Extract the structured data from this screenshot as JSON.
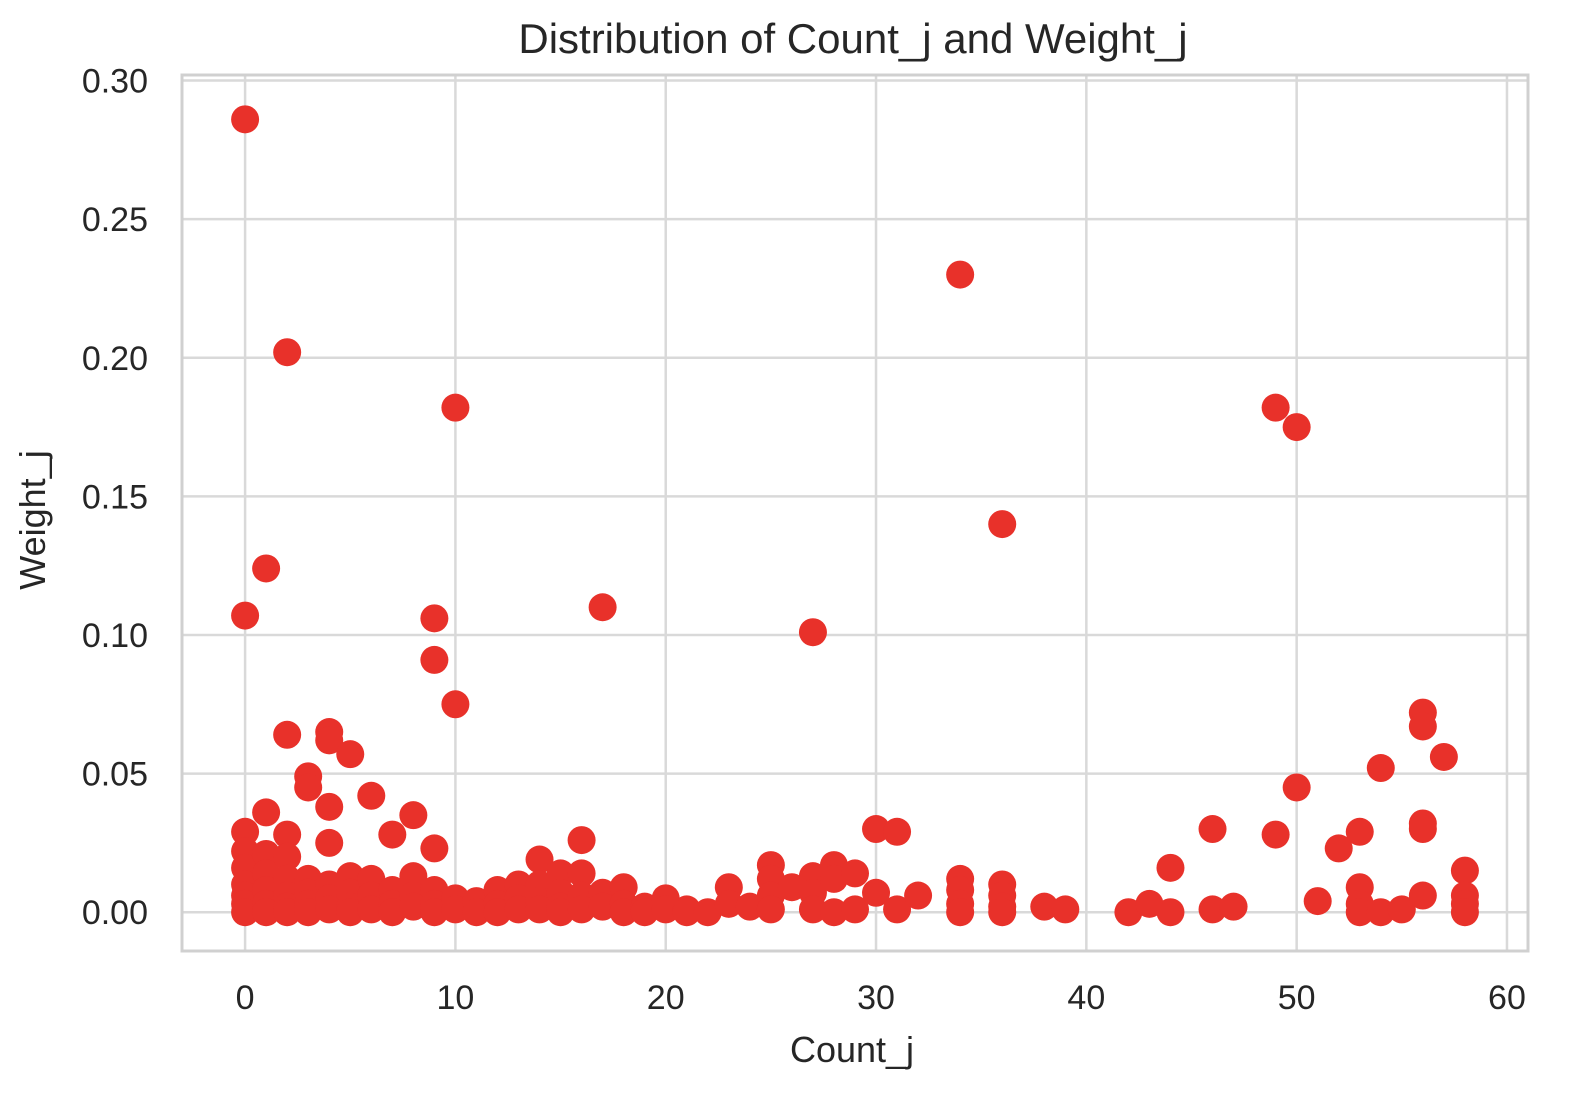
{
  "chart_data": {
    "type": "scatter",
    "title": "Distribution of Count_j and Weight_j",
    "xlabel": "Count_j",
    "ylabel": "Weight_j",
    "xlim": [
      -3,
      61
    ],
    "ylim": [
      -0.014,
      0.302
    ],
    "x_ticks": [
      0,
      10,
      20,
      30,
      40,
      50,
      60
    ],
    "y_ticks": [
      0.0,
      0.05,
      0.1,
      0.15,
      0.2,
      0.25,
      0.3
    ],
    "x_tick_labels": [
      "0",
      "10",
      "20",
      "30",
      "40",
      "50",
      "60"
    ],
    "y_tick_labels": [
      "0.00",
      "0.05",
      "0.10",
      "0.15",
      "0.20",
      "0.25",
      "0.30"
    ],
    "grid": true,
    "marker_color": "#e8312a",
    "points": [
      [
        0,
        0.286
      ],
      [
        0,
        0.107
      ],
      [
        0,
        0.029
      ],
      [
        0,
        0.022
      ],
      [
        0,
        0.016
      ],
      [
        0,
        0.01
      ],
      [
        0,
        0.006
      ],
      [
        0,
        0.003
      ],
      [
        0,
        0.0
      ],
      [
        1,
        0.124
      ],
      [
        1,
        0.036
      ],
      [
        1,
        0.021
      ],
      [
        1,
        0.014
      ],
      [
        1,
        0.008
      ],
      [
        1,
        0.003
      ],
      [
        1,
        0.0
      ],
      [
        2,
        0.202
      ],
      [
        2,
        0.064
      ],
      [
        2,
        0.028
      ],
      [
        2,
        0.02
      ],
      [
        2,
        0.012
      ],
      [
        2,
        0.006
      ],
      [
        2,
        0.002
      ],
      [
        2,
        0.0
      ],
      [
        3,
        0.049
      ],
      [
        3,
        0.045
      ],
      [
        3,
        0.012
      ],
      [
        3,
        0.007
      ],
      [
        3,
        0.003
      ],
      [
        3,
        0.0
      ],
      [
        4,
        0.065
      ],
      [
        4,
        0.062
      ],
      [
        4,
        0.038
      ],
      [
        4,
        0.025
      ],
      [
        4,
        0.01
      ],
      [
        4,
        0.005
      ],
      [
        4,
        0.001
      ],
      [
        5,
        0.057
      ],
      [
        5,
        0.013
      ],
      [
        5,
        0.007
      ],
      [
        5,
        0.002
      ],
      [
        5,
        0.0
      ],
      [
        6,
        0.042
      ],
      [
        6,
        0.012
      ],
      [
        6,
        0.006
      ],
      [
        6,
        0.001
      ],
      [
        7,
        0.028
      ],
      [
        7,
        0.008
      ],
      [
        7,
        0.003
      ],
      [
        7,
        0.0
      ],
      [
        8,
        0.035
      ],
      [
        8,
        0.013
      ],
      [
        8,
        0.006
      ],
      [
        8,
        0.002
      ],
      [
        9,
        0.106
      ],
      [
        9,
        0.091
      ],
      [
        9,
        0.023
      ],
      [
        9,
        0.008
      ],
      [
        9,
        0.003
      ],
      [
        9,
        0.0
      ],
      [
        10,
        0.182
      ],
      [
        10,
        0.075
      ],
      [
        10,
        0.005
      ],
      [
        10,
        0.001
      ],
      [
        11,
        0.004
      ],
      [
        11,
        0.0
      ],
      [
        12,
        0.008
      ],
      [
        12,
        0.003
      ],
      [
        12,
        0.0
      ],
      [
        13,
        0.01
      ],
      [
        13,
        0.005
      ],
      [
        13,
        0.001
      ],
      [
        14,
        0.019
      ],
      [
        14,
        0.01
      ],
      [
        14,
        0.004
      ],
      [
        14,
        0.001
      ],
      [
        15,
        0.014
      ],
      [
        15,
        0.007
      ],
      [
        15,
        0.002
      ],
      [
        15,
        0.0
      ],
      [
        16,
        0.026
      ],
      [
        16,
        0.014
      ],
      [
        16,
        0.006
      ],
      [
        16,
        0.001
      ],
      [
        17,
        0.11
      ],
      [
        17,
        0.007
      ],
      [
        17,
        0.002
      ],
      [
        18,
        0.009
      ],
      [
        18,
        0.003
      ],
      [
        18,
        0.0
      ],
      [
        19,
        0.002
      ],
      [
        19,
        0.0
      ],
      [
        20,
        0.005
      ],
      [
        20,
        0.001
      ],
      [
        21,
        0.001
      ],
      [
        21,
        0.0
      ],
      [
        22,
        0.0
      ],
      [
        23,
        0.009
      ],
      [
        23,
        0.003
      ],
      [
        24,
        0.002
      ],
      [
        25,
        0.017
      ],
      [
        25,
        0.012
      ],
      [
        25,
        0.006
      ],
      [
        25,
        0.001
      ],
      [
        26,
        0.009
      ],
      [
        27,
        0.101
      ],
      [
        27,
        0.013
      ],
      [
        27,
        0.007
      ],
      [
        27,
        0.001
      ],
      [
        28,
        0.017
      ],
      [
        28,
        0.012
      ],
      [
        28,
        0.0
      ],
      [
        29,
        0.014
      ],
      [
        29,
        0.001
      ],
      [
        30,
        0.03
      ],
      [
        30,
        0.007
      ],
      [
        31,
        0.029
      ],
      [
        31,
        0.001
      ],
      [
        32,
        0.006
      ],
      [
        34,
        0.23
      ],
      [
        34,
        0.012
      ],
      [
        34,
        0.008
      ],
      [
        34,
        0.003
      ],
      [
        34,
        0.0
      ],
      [
        36,
        0.14
      ],
      [
        36,
        0.01
      ],
      [
        36,
        0.006
      ],
      [
        36,
        0.002
      ],
      [
        36,
        0.0
      ],
      [
        38,
        0.002
      ],
      [
        39,
        0.001
      ],
      [
        42,
        0.0
      ],
      [
        43,
        0.003
      ],
      [
        44,
        0.016
      ],
      [
        44,
        0.0
      ],
      [
        46,
        0.03
      ],
      [
        46,
        0.001
      ],
      [
        47,
        0.002
      ],
      [
        49,
        0.182
      ],
      [
        49,
        0.028
      ],
      [
        50,
        0.175
      ],
      [
        50,
        0.045
      ],
      [
        51,
        0.004
      ],
      [
        52,
        0.023
      ],
      [
        53,
        0.029
      ],
      [
        53,
        0.009
      ],
      [
        53,
        0.003
      ],
      [
        53,
        0.0
      ],
      [
        54,
        0.052
      ],
      [
        54,
        0.0
      ],
      [
        55,
        0.001
      ],
      [
        56,
        0.072
      ],
      [
        56,
        0.067
      ],
      [
        56,
        0.032
      ],
      [
        56,
        0.03
      ],
      [
        56,
        0.006
      ],
      [
        57,
        0.056
      ],
      [
        58,
        0.015
      ],
      [
        58,
        0.006
      ],
      [
        58,
        0.003
      ],
      [
        58,
        0.0
      ]
    ]
  }
}
